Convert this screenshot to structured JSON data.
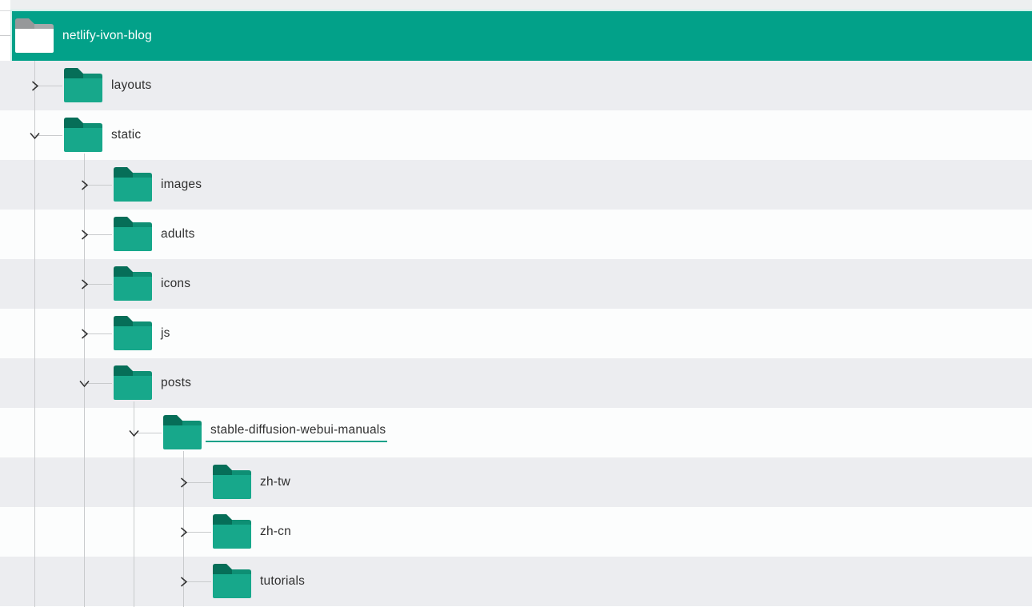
{
  "root": {
    "label": "netlify-ivon-blog",
    "expanded": true,
    "selected": true
  },
  "rows": [
    {
      "label": "layouts",
      "level": 1,
      "expanded": false,
      "underlined": false
    },
    {
      "label": "static",
      "level": 1,
      "expanded": true,
      "underlined": false
    },
    {
      "label": "images",
      "level": 2,
      "expanded": false,
      "underlined": false
    },
    {
      "label": "adults",
      "level": 2,
      "expanded": false,
      "underlined": false
    },
    {
      "label": "icons",
      "level": 2,
      "expanded": false,
      "underlined": false
    },
    {
      "label": "js",
      "level": 2,
      "expanded": false,
      "underlined": false
    },
    {
      "label": "posts",
      "level": 2,
      "expanded": true,
      "underlined": false
    },
    {
      "label": "stable-diffusion-webui-manuals",
      "level": 3,
      "expanded": true,
      "underlined": true
    },
    {
      "label": "zh-tw",
      "level": 4,
      "expanded": false,
      "underlined": false
    },
    {
      "label": "zh-cn",
      "level": 4,
      "expanded": false,
      "underlined": false
    },
    {
      "label": "tutorials",
      "level": 4,
      "expanded": false,
      "underlined": false
    }
  ],
  "icons": {
    "root": "open-folder-icon",
    "node": "folder-icon",
    "collapsed": "chevron-right-icon",
    "expanded": "chevron-down-icon"
  },
  "colors": {
    "banner_bg": "#02a189",
    "banner_border": "#cff1eb",
    "banner_text": "#ffffff",
    "row_alt_bg": "#ecedf0",
    "row_bg": "#fcfdfd",
    "page_top_strip": "#edeff0",
    "line": "#c9cbcd",
    "label_text": "#303030",
    "chevron": "#2f2f2f",
    "folder_tab": "#066e58",
    "folder_strip": "#0e8f74",
    "folder_body": "#17a88b",
    "root_folder_tab": "#96989a",
    "root_folder_strip": "#a7a9ab",
    "root_folder_body": "#ffffff",
    "link_underline": "#12a189"
  }
}
